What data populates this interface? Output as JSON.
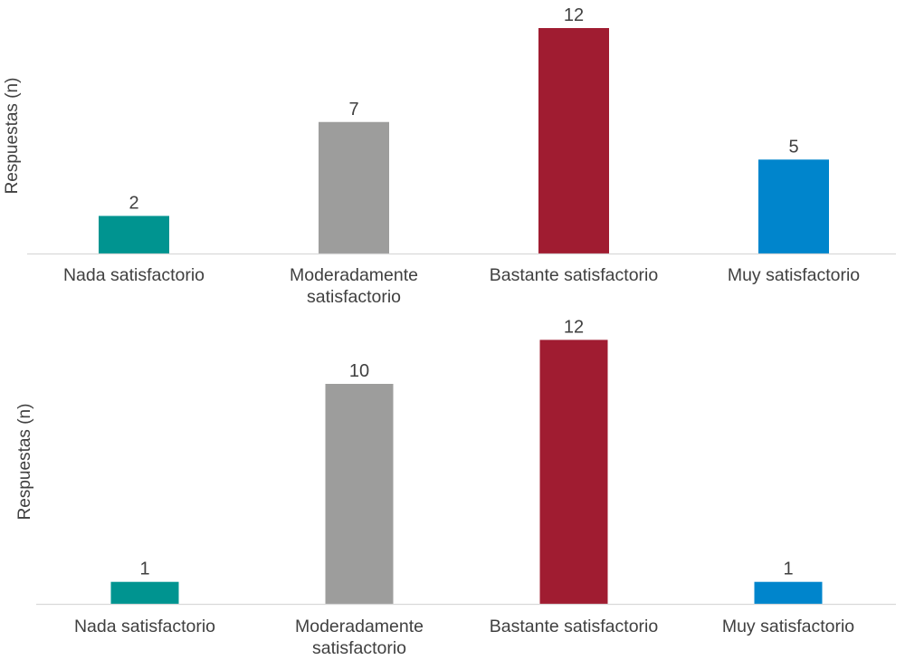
{
  "chart_data": [
    {
      "type": "bar",
      "title": "",
      "xlabel": "",
      "ylabel": "Respuestas (n)",
      "categories": [
        [
          "Nada satisfactorio"
        ],
        [
          "Moderadamente",
          "satisfactorio"
        ],
        [
          "Bastante satisfactorio"
        ],
        [
          "Muy satisfactorio"
        ]
      ],
      "values": [
        2,
        7,
        12,
        5
      ],
      "colors": [
        "#009490",
        "#9d9d9c",
        "#a01c31",
        "#0085cc"
      ],
      "ylim": [
        0,
        12
      ],
      "grid": false
    },
    {
      "type": "bar",
      "title": "",
      "xlabel": "",
      "ylabel": "Respuestas (n)",
      "categories": [
        [
          "Nada satisfactorio"
        ],
        [
          "Moderadamente",
          "satisfactorio"
        ],
        [
          "Bastante satisfactorio"
        ],
        [
          "Muy satisfactorio"
        ]
      ],
      "values": [
        1,
        10,
        12,
        1
      ],
      "colors": [
        "#009490",
        "#9d9d9c",
        "#a01c31",
        "#0085cc"
      ],
      "ylim": [
        0,
        12
      ],
      "grid": false
    }
  ]
}
